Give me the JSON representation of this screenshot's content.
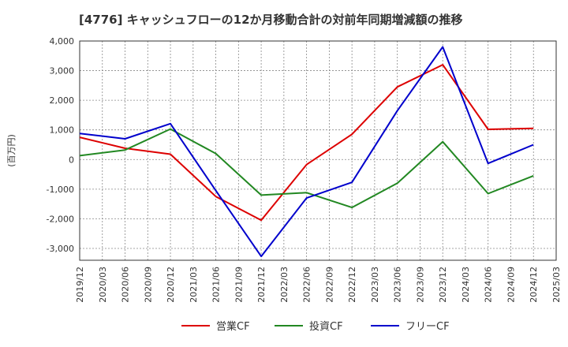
{
  "chart_data": {
    "type": "line",
    "title": "[4776]  キャッシュフローの12か月移動合計の対前年同期増減額の推移",
    "ylabel": "(百万円)",
    "xlabel": "",
    "ylim": [
      -3400,
      4000
    ],
    "yticks": [
      4000,
      3000,
      2000,
      1000,
      0,
      -1000,
      -2000,
      -3000
    ],
    "ytick_labels": [
      "4,000",
      "3,000",
      "2,000",
      "1,000",
      "0",
      "-1,000",
      "-2,000",
      "-3,000"
    ],
    "categories": [
      "2019/12",
      "2020/03",
      "2020/06",
      "2020/09",
      "2020/12",
      "2021/03",
      "2021/06",
      "2021/09",
      "2021/12",
      "2022/03",
      "2022/06",
      "2022/09",
      "2022/12",
      "2023/03",
      "2023/06",
      "2023/09",
      "2023/12",
      "2024/03",
      "2024/06",
      "2024/09",
      "2024/12",
      "2025/03"
    ],
    "grid": true,
    "legend_position": "bottom",
    "series": [
      {
        "name": "営業CF",
        "color": "#dd0000",
        "values": [
          750,
          null,
          380,
          null,
          180,
          null,
          -1250,
          null,
          -2050,
          null,
          -170,
          null,
          850,
          null,
          2450,
          null,
          3200,
          null,
          1020,
          null,
          1050,
          null
        ]
      },
      {
        "name": "投資CF",
        "color": "#228822",
        "values": [
          130,
          null,
          320,
          null,
          1030,
          null,
          200,
          null,
          -1200,
          null,
          -1120,
          null,
          -1620,
          null,
          -800,
          null,
          600,
          null,
          -1150,
          null,
          -550,
          null
        ]
      },
      {
        "name": "フリーCF",
        "color": "#0000cc",
        "values": [
          880,
          null,
          700,
          null,
          1210,
          null,
          -1050,
          null,
          -3270,
          null,
          -1300,
          null,
          -770,
          null,
          1650,
          null,
          3800,
          null,
          -130,
          null,
          500,
          null
        ]
      }
    ]
  }
}
